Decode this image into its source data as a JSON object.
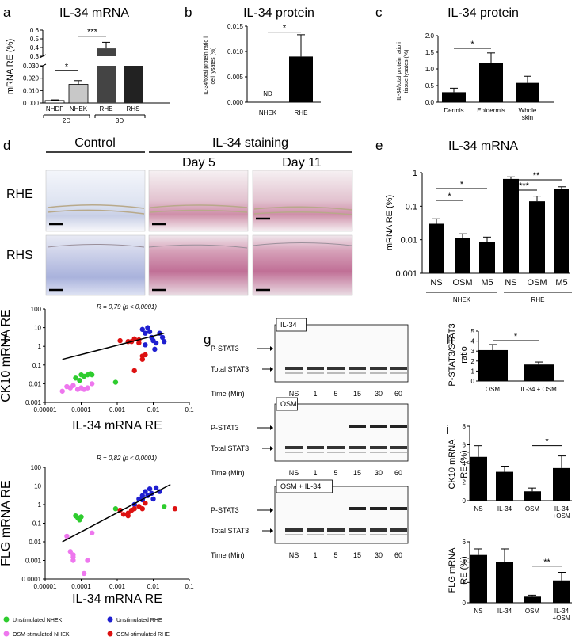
{
  "panel_labels": [
    "a",
    "b",
    "c",
    "d",
    "e",
    "f",
    "g",
    "h",
    "i"
  ],
  "chart_data": [
    {
      "id": "a",
      "type": "bar",
      "title": "IL-34 mRNA",
      "ylabel": "mRNA RE (%)",
      "categories": [
        "NHDF",
        "NHEK",
        "RHE",
        "RHS"
      ],
      "values": [
        0.002,
        0.015,
        0.39,
        0.3
      ],
      "errors": [
        0.0005,
        0.003,
        0.07,
        0
      ],
      "colors": [
        "#ffffff",
        "#c8c8c8",
        "#444444",
        "#222222"
      ],
      "axis_break": true,
      "ylim_low": [
        0,
        0.03
      ],
      "ylim_high": [
        0.3,
        0.6
      ],
      "ticks_low": [
        "0.000",
        "0.010",
        "0.020",
        "0.030"
      ],
      "ticks_high": [
        "0.3",
        "0.4",
        "0.5",
        "0.6"
      ],
      "groups": [
        "2D",
        "3D"
      ],
      "significance": [
        "*",
        "***"
      ]
    },
    {
      "id": "b",
      "type": "bar",
      "title": "IL-34 protein",
      "ylabel": "IL-34/total protein ratio in cell lysates (%)",
      "categories": [
        "NHEK",
        "RHE"
      ],
      "values": [
        0,
        0.009
      ],
      "errors": [
        0,
        0.0043
      ],
      "ylim": [
        0,
        0.015
      ],
      "ticks": [
        "0.000",
        "0.005",
        "0.010",
        "0.015"
      ],
      "annotation": "ND",
      "significance": [
        "*"
      ]
    },
    {
      "id": "c",
      "type": "bar",
      "title": "IL-34 protein",
      "ylabel": "IL-34/total protein ratio in tissue lysates (%)",
      "categories": [
        "Dermis",
        "Epidermis",
        "Whole skin"
      ],
      "values": [
        0.3,
        1.18,
        0.58
      ],
      "errors": [
        0.12,
        0.3,
        0.2
      ],
      "ylim": [
        0,
        2.0
      ],
      "ticks": [
        "0.0",
        "0.5",
        "1.0",
        "1.5",
        "2.0"
      ],
      "significance": [
        "*"
      ]
    },
    {
      "id": "e",
      "type": "bar",
      "title": "IL-34 mRNA",
      "ylabel": "mRNA RE (%)",
      "log_scale": true,
      "categories": [
        "NS",
        "OSM",
        "M5",
        "NS",
        "OSM",
        "M5"
      ],
      "values": [
        0.03,
        0.011,
        0.0085,
        0.65,
        0.14,
        0.32
      ],
      "errors_upper": [
        0.042,
        0.015,
        0.012,
        0.75,
        0.2,
        0.38
      ],
      "ylim": [
        0.001,
        1
      ],
      "ticks": [
        "0.001",
        "0.01",
        "0.1",
        "1"
      ],
      "groups": [
        "NHEK",
        "RHE"
      ],
      "significance": [
        "*",
        "*",
        "***",
        "**"
      ]
    },
    {
      "id": "f1",
      "type": "scatter",
      "title": "R = 0,79 (p < 0,0001)",
      "xlabel": "IL-34 mRNA RE",
      "ylabel": "CK10 mRNA RE",
      "log_x": true,
      "log_y": true,
      "xlim": [
        1e-05,
        0.1
      ],
      "ylim": [
        0.001,
        100
      ],
      "xticks": [
        "0.00001",
        "0.0001",
        "0.001",
        "0.01",
        "0.1"
      ],
      "yticks": [
        "0.001",
        "0.01",
        "0.1",
        "1",
        "10",
        "100"
      ],
      "trendline": [
        [
          3e-05,
          0.2
        ],
        [
          0.02,
          5
        ]
      ],
      "series": [
        {
          "name": "Unstimulated NHEK",
          "color": "#2ecc2e",
          "points": [
            [
              7e-05,
              0.02
            ],
            [
              0.0001,
              0.03
            ],
            [
              0.00012,
              0.025
            ],
            [
              0.00015,
              0.03
            ],
            [
              0.00018,
              0.035
            ],
            [
              0.0002,
              0.03
            ],
            [
              9e-05,
              0.015
            ],
            [
              0.0009,
              0.012
            ]
          ]
        },
        {
          "name": "OSM-stimulated NHEK",
          "color": "#ee77ee",
          "points": [
            [
              3e-05,
              0.004
            ],
            [
              5e-05,
              0.006
            ],
            [
              6e-05,
              0.008
            ],
            [
              8e-05,
              0.005
            ],
            [
              0.0001,
              0.006
            ],
            [
              0.00012,
              0.005
            ],
            [
              0.00015,
              0.006
            ],
            [
              0.0002,
              0.01
            ],
            [
              4e-05,
              0.007
            ]
          ]
        },
        {
          "name": "Unstimulated RHE",
          "color": "#1f1fd0",
          "points": [
            [
              0.005,
              8
            ],
            [
              0.006,
              5
            ],
            [
              0.007,
              10
            ],
            [
              0.008,
              6
            ],
            [
              0.009,
              3
            ],
            [
              0.01,
              2
            ],
            [
              0.012,
              1.5
            ],
            [
              0.015,
              5
            ],
            [
              0.018,
              3
            ],
            [
              0.02,
              1.8
            ],
            [
              0.006,
              1.2
            ],
            [
              0.011,
              0.7
            ]
          ]
        },
        {
          "name": "OSM-stimulated RHE",
          "color": "#dd1111",
          "points": [
            [
              0.0012,
              2
            ],
            [
              0.002,
              1.8
            ],
            [
              0.003,
              2.5
            ],
            [
              0.004,
              1.5
            ],
            [
              0.005,
              0.3
            ],
            [
              0.006,
              0.35
            ],
            [
              0.004,
              2.2
            ],
            [
              0.003,
              0.05
            ],
            [
              0.005,
              0.2
            ],
            [
              0.0025,
              1.8
            ]
          ]
        }
      ]
    },
    {
      "id": "f2",
      "type": "scatter",
      "title": "R = 0,82 (p < 0,0001)",
      "xlabel": "IL-34 mRNA RE",
      "ylabel": "FLG mRNA RE",
      "log_x": true,
      "log_y": true,
      "xlim": [
        1e-05,
        0.1
      ],
      "ylim": [
        0.0001,
        100
      ],
      "xticks": [
        "0.00001",
        "0.0001",
        "0.001",
        "0.01",
        "0.1"
      ],
      "yticks": [
        "0.0001",
        "0.001",
        "0.01",
        "0.1",
        "1",
        "10",
        "100"
      ],
      "trendline": [
        [
          3e-05,
          0.01
        ],
        [
          0.03,
          12
        ]
      ],
      "series": [
        {
          "name": "Unstimulated NHEK",
          "color": "#2ecc2e",
          "points": [
            [
              7e-05,
              0.25
            ],
            [
              8e-05,
              0.2
            ],
            [
              9e-05,
              0.15
            ],
            [
              0.0001,
              0.22
            ],
            [
              0.0009,
              0.6
            ],
            [
              0.02,
              0.8
            ]
          ]
        },
        {
          "name": "OSM-stimulated NHEK",
          "color": "#ee77ee",
          "points": [
            [
              4e-05,
              0.02
            ],
            [
              5e-05,
              0.003
            ],
            [
              6e-05,
              0.002
            ],
            [
              6e-05,
              0.0015
            ],
            [
              0.00015,
              0.001
            ],
            [
              0.00012,
              0.0002
            ],
            [
              0.0002,
              0.03
            ],
            [
              6e-05,
              0.001
            ]
          ]
        },
        {
          "name": "Unstimulated RHE",
          "color": "#1f1fd0",
          "points": [
            [
              0.004,
              2
            ],
            [
              0.005,
              3
            ],
            [
              0.006,
              5
            ],
            [
              0.007,
              3
            ],
            [
              0.008,
              7
            ],
            [
              0.009,
              4
            ],
            [
              0.01,
              2
            ],
            [
              0.012,
              8
            ],
            [
              0.015,
              5
            ],
            [
              0.005,
              1.8
            ],
            [
              0.003,
              1
            ]
          ]
        },
        {
          "name": "OSM-stimulated RHE",
          "color": "#dd1111",
          "points": [
            [
              0.0012,
              0.5
            ],
            [
              0.0015,
              0.3
            ],
            [
              0.002,
              0.25
            ],
            [
              0.0025,
              0.5
            ],
            [
              0.003,
              0.6
            ],
            [
              0.004,
              0.8
            ],
            [
              0.005,
              0.6
            ],
            [
              0.006,
              1.2
            ],
            [
              0.04,
              0.6
            ],
            [
              0.002,
              0.35
            ]
          ]
        }
      ]
    },
    {
      "id": "h",
      "type": "bar",
      "ylabel": "P-STAT3/STAT3 ratio",
      "categories": [
        "OSM",
        "IL-34 + OSM"
      ],
      "values": [
        3.1,
        1.65
      ],
      "errors": [
        0.55,
        0.25
      ],
      "ylim": [
        0,
        5
      ],
      "ticks": [
        "0",
        "1",
        "2",
        "3",
        "4",
        "5"
      ],
      "significance": [
        "*"
      ]
    },
    {
      "id": "i1",
      "type": "bar",
      "ylabel": "CK10 mRNA RE (%)",
      "categories": [
        "NS",
        "IL-34",
        "OSM",
        "IL-34 +OSM"
      ],
      "values": [
        4.7,
        3.1,
        1.0,
        3.5
      ],
      "errors": [
        1.2,
        0.6,
        0.35,
        1.3
      ],
      "ylim": [
        0,
        8
      ],
      "ticks": [
        "0",
        "2",
        "4",
        "6",
        "8"
      ],
      "significance": [
        "*"
      ]
    },
    {
      "id": "i2",
      "type": "bar",
      "ylabel": "FLG mRNA RE (%)",
      "categories": [
        "NS",
        "IL-34",
        "OSM",
        "IL-34 +OSM"
      ],
      "values": [
        4.7,
        4.0,
        0.6,
        2.2
      ],
      "errors": [
        0.6,
        1.3,
        0.15,
        0.8
      ],
      "ylim": [
        0,
        6
      ],
      "ticks": [
        "0",
        "2",
        "4",
        "6"
      ],
      "significance": [
        "**"
      ]
    }
  ],
  "panel_d": {
    "title_control": "Control",
    "title_staining": "IL-34 staining",
    "day5": "Day 5",
    "day11": "Day 11",
    "row1": "RHE",
    "row2": "RHS"
  },
  "panel_g": {
    "blots": [
      "IL-34",
      "OSM",
      "OSM + IL-34"
    ],
    "band1": "P-STAT3",
    "band2": "Total STAT3",
    "time_label": "Time (Min)",
    "times": [
      "NS",
      "1",
      "5",
      "15",
      "30",
      "60"
    ],
    "pstat_visible": [
      false,
      true,
      true
    ]
  },
  "legend": [
    "Unstimulated NHEK",
    "Unstimulated RHE",
    "OSM-stimulated NHEK",
    "OSM-stimulated RHE"
  ],
  "colors": {
    "green": "#2ecc2e",
    "blue": "#1f1fd0",
    "pink": "#ee77ee",
    "red": "#dd1111"
  }
}
